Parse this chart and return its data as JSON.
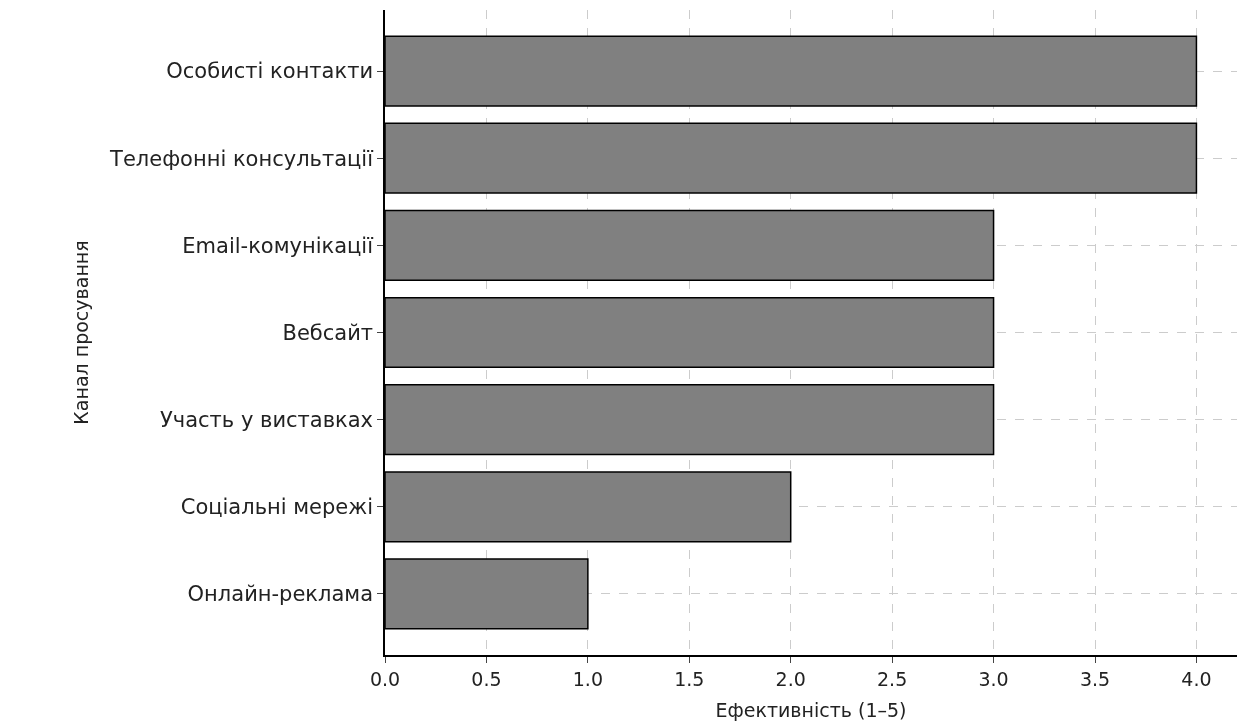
{
  "chart_data": {
    "type": "bar",
    "orientation": "horizontal",
    "xlabel": "Ефективність (1–5)",
    "ylabel": "Канал просування",
    "categories": [
      "Особисті контакти",
      "Телефонні консультації",
      "Email-комунікації",
      "Вебсайт",
      "Участь у виставках",
      "Соціальні мережі",
      "Онлайн-реклама"
    ],
    "values": [
      4,
      4,
      3,
      3,
      3,
      2,
      1
    ],
    "color": "#808080",
    "xlim": [
      0,
      4.2
    ],
    "xticks": [
      {
        "value": 0,
        "label": "0.0"
      },
      {
        "value": 0.5,
        "label": "0.5"
      },
      {
        "value": 1,
        "label": "1.0"
      },
      {
        "value": 1.5,
        "label": "1.5"
      },
      {
        "value": 2,
        "label": "2.0"
      },
      {
        "value": 2.5,
        "label": "2.5"
      },
      {
        "value": 3,
        "label": "3.0"
      },
      {
        "value": 3.5,
        "label": "3.5"
      },
      {
        "value": 4,
        "label": "4.0"
      }
    ],
    "grid": true
  }
}
